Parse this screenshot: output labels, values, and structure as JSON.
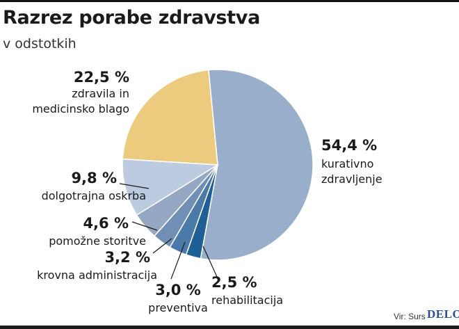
{
  "chart_data": {
    "type": "pie",
    "title": "Razrez porabe zdravstva",
    "subtitle": "v odstotkih",
    "slices": [
      {
        "value": 54.4,
        "pct_label": "54,4 %",
        "name_lines": [
          "kurativno",
          "zdravljenje"
        ],
        "color": "#98aecb"
      },
      {
        "value": 2.5,
        "pct_label": "2,5 %",
        "name_lines": [
          "rehabilitacija"
        ],
        "color": "#1e5f96"
      },
      {
        "value": 3.0,
        "pct_label": "3,0 %",
        "name_lines": [
          "preventiva"
        ],
        "color": "#4a7aa8"
      },
      {
        "value": 3.2,
        "pct_label": "3,2 %",
        "name_lines": [
          "krovna administracija"
        ],
        "color": "#6f8fb5"
      },
      {
        "value": 4.6,
        "pct_label": "4,6 %",
        "name_lines": [
          "pomožne storitve"
        ],
        "color": "#94a8c4"
      },
      {
        "value": 9.8,
        "pct_label": "9,8 %",
        "name_lines": [
          "dolgotrajna oskrba"
        ],
        "color": "#bccbe0"
      },
      {
        "value": 22.5,
        "pct_label": "22,5 %",
        "name_lines": [
          "zdravila in",
          "medicinsko blago"
        ],
        "color": "#eccb7f"
      }
    ],
    "start_angle_deg": -5.5,
    "direction": "clockwise"
  },
  "footer": {
    "source": "Vir: Surs",
    "logo": "DELO"
  }
}
